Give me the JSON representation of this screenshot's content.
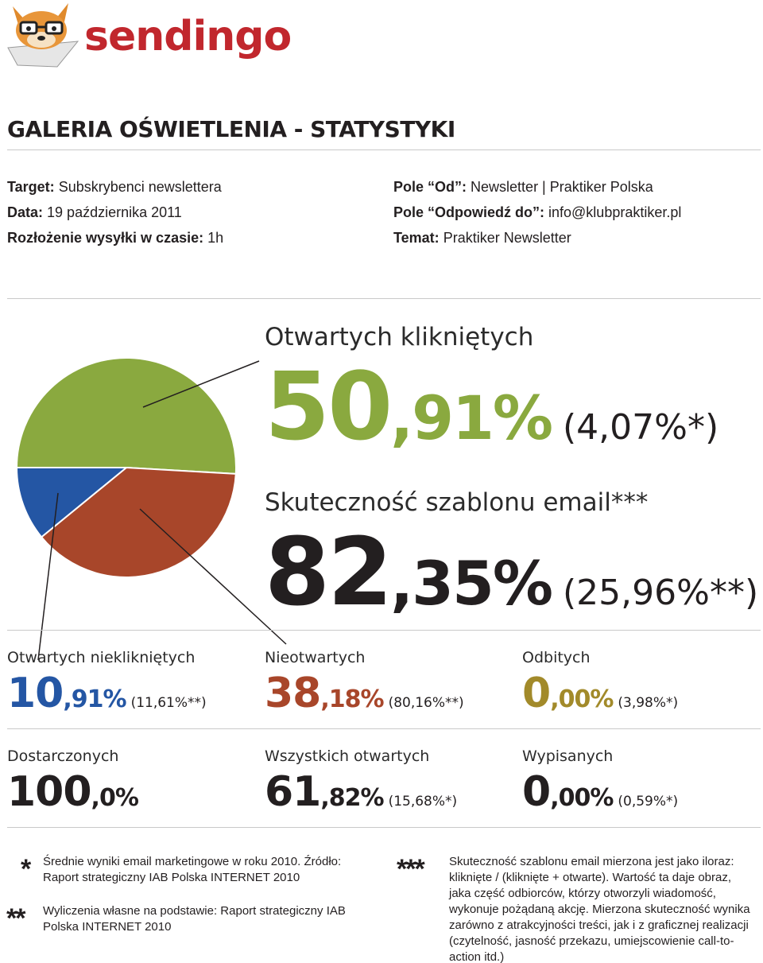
{
  "brand": {
    "name": "sendingo",
    "brand_color": "#c1272d"
  },
  "title": "GALERIA OŚWIETLENIA - STATYSTYKI",
  "meta_left": [
    {
      "key": "Target:",
      "value": "Subskrybenci newslettera"
    },
    {
      "key": "Data:",
      "value": "19 października 2011"
    },
    {
      "key": "Rozłożenie wysyłki w czasie:",
      "value": "1h"
    }
  ],
  "meta_right": [
    {
      "key": "Pole “Od”:",
      "value": "Newsletter | Praktiker Polska"
    },
    {
      "key": "Pole “Odpowiedź do”:",
      "value": "info@klubpraktiker.pl"
    },
    {
      "key": "Temat:",
      "value": "Praktiker Newsletter"
    }
  ],
  "colors": {
    "green": "#8aa93f",
    "blue": "#2456a4",
    "rust": "#a8462a",
    "olive": "#a28a2a",
    "dark": "#231f20"
  },
  "headline": [
    {
      "label": "Otwartych klikniętych",
      "int": "50",
      "dec": ",91%",
      "ref": "(4,07%*)",
      "color": "#8aa93f"
    },
    {
      "label": "Skuteczność szablonu email***",
      "int": "82",
      "dec": ",35%",
      "ref": "(25,96%**)",
      "color": "#231f20"
    }
  ],
  "stats_row1": [
    {
      "label": "Otwartych nieklikniętych",
      "int": "10",
      "dec": ",91%",
      "ref": "(11,61%**)",
      "color": "#2456a4"
    },
    {
      "label": "Nieotwartych",
      "int": "38",
      "dec": ",18%",
      "ref": "(80,16%**)",
      "color": "#a8462a"
    },
    {
      "label": "Odbitych",
      "int": "0",
      "dec": ",00%",
      "ref": "(3,98%*)",
      "color": "#a28a2a"
    }
  ],
  "stats_row2": [
    {
      "label": "Dostarczonych",
      "int": "100",
      "dec": ",0%",
      "ref": "",
      "color": "#231f20"
    },
    {
      "label": "Wszystkich otwartych",
      "int": "61",
      "dec": ",82%",
      "ref": "(15,68%*)",
      "color": "#231f20"
    },
    {
      "label": "Wypisanych",
      "int": "0",
      "dec": ",00%",
      "ref": "(0,59%*)",
      "color": "#231f20"
    }
  ],
  "pie": [
    {
      "name": "Otwartych klikniętych",
      "value": 50.91,
      "color": "#8aa93f"
    },
    {
      "name": "Nieotwartych",
      "value": 38.18,
      "color": "#a8462a"
    },
    {
      "name": "Otwartych nieklikniętych",
      "value": 10.91,
      "color": "#2456a4"
    }
  ],
  "notes": [
    {
      "mark": "*",
      "text": "Średnie wyniki email marketingowe w roku 2010. Źródło: Raport strategiczny IAB Polska INTERNET 2010"
    },
    {
      "mark": "**",
      "text": "Wyliczenia własne na podstawie: Raport strategiczny IAB Polska INTERNET 2010"
    },
    {
      "mark": "***",
      "text": "Skuteczność szablonu email mierzona jest jako iloraz: kliknięte / (kliknięte + otwarte). Wartość ta daje obraz, jaka część odbiorców, którzy otworzyli wiadomość, wykonuje pożądaną akcję. Mierzona skuteczność wynika zarówno z atrakcyjności treści, jak i z graficznej realizacji (czytelność, jasność przekazu, umiejscowienie call-to-action itd.)"
    }
  ]
}
